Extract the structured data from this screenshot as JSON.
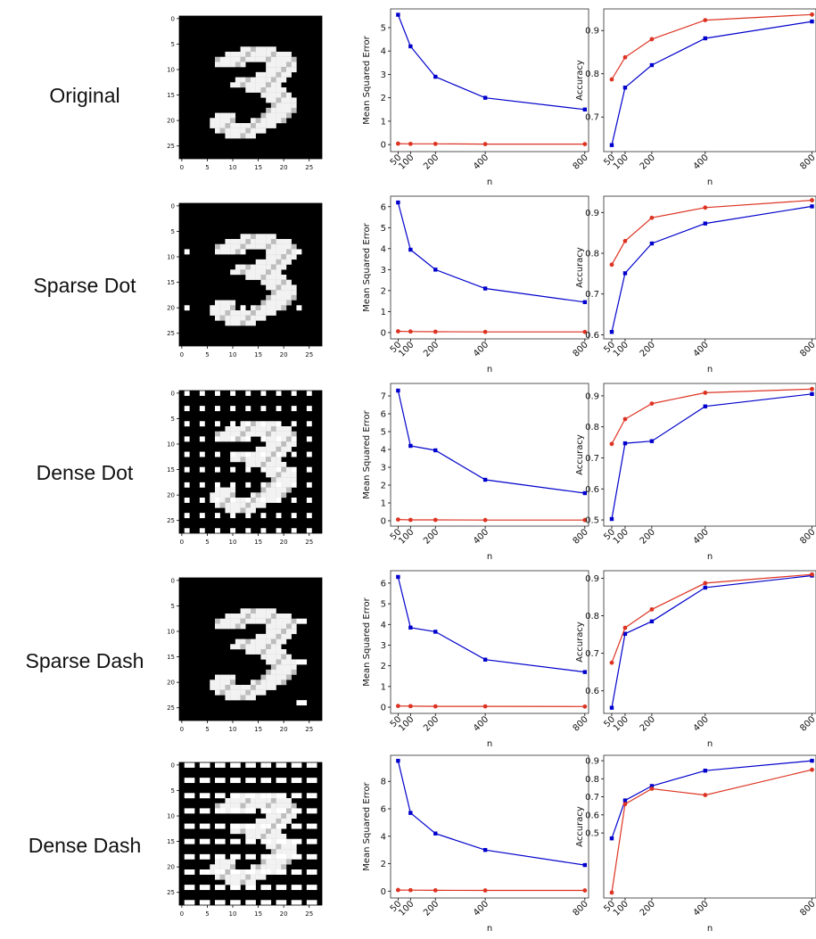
{
  "rows": [
    {
      "label": "Original"
    },
    {
      "label": "Sparse Dot"
    },
    {
      "label": "Dense Dot"
    },
    {
      "label": "Sparse Dash"
    },
    {
      "label": "Dense Dash"
    }
  ],
  "colors": {
    "series_a": "#0000cc",
    "series_b": "#dd3322"
  },
  "chart_data": [
    {
      "type": "heatmap",
      "row": "Original",
      "xlim": [
        0,
        27
      ],
      "ylim": [
        0,
        27
      ],
      "xticks": [
        "0",
        "5",
        "10",
        "15",
        "20",
        "25"
      ],
      "yticks": [
        "0",
        "5",
        "10",
        "15",
        "20",
        "25"
      ],
      "pattern": "none"
    },
    {
      "type": "line",
      "row": "Original",
      "xlabel": "n",
      "ylabel": "Mean Squared Error",
      "x": [
        50,
        100,
        200,
        400,
        800
      ],
      "xticks": [
        "50",
        "100",
        "200",
        "400",
        "800"
      ],
      "ylim": [
        -0.3,
        5.8
      ],
      "yticks": [
        0,
        1,
        2,
        3,
        4,
        5
      ],
      "series": [
        {
          "values": [
            5.55,
            4.2,
            2.9,
            2.0,
            1.5
          ]
        },
        {
          "values": [
            0.04,
            0.03,
            0.03,
            0.02,
            0.02
          ]
        }
      ]
    },
    {
      "type": "line",
      "row": "Original",
      "xlabel": "n",
      "ylabel": "Accuracy",
      "x": [
        50,
        100,
        200,
        400,
        800
      ],
      "xticks": [
        "50",
        "100",
        "200",
        "400",
        "800"
      ],
      "ylim": [
        0.62,
        0.95
      ],
      "yticks": [
        0.7,
        0.8,
        0.9
      ],
      "series": [
        {
          "values": [
            0.635,
            0.768,
            0.82,
            0.882,
            0.921
          ]
        },
        {
          "values": [
            0.787,
            0.838,
            0.88,
            0.924,
            0.937
          ]
        }
      ]
    },
    {
      "type": "heatmap",
      "row": "Sparse Dot",
      "xlim": [
        0,
        27
      ],
      "ylim": [
        0,
        27
      ],
      "xticks": [
        "0",
        "5",
        "10",
        "15",
        "20",
        "25"
      ],
      "yticks": [
        "0",
        "5",
        "10",
        "15",
        "20",
        "25"
      ],
      "pattern": "sparse-dot"
    },
    {
      "type": "line",
      "row": "Sparse Dot",
      "xlabel": "n",
      "ylabel": "Mean Squared Error",
      "x": [
        50,
        100,
        200,
        400,
        800
      ],
      "xticks": [
        "50",
        "100",
        "200",
        "400",
        "800"
      ],
      "ylim": [
        -0.3,
        6.5
      ],
      "yticks": [
        0,
        1,
        2,
        3,
        4,
        5,
        6
      ],
      "series": [
        {
          "values": [
            6.2,
            3.95,
            3.0,
            2.1,
            1.45
          ]
        },
        {
          "values": [
            0.06,
            0.05,
            0.04,
            0.03,
            0.03
          ]
        }
      ]
    },
    {
      "type": "line",
      "row": "Sparse Dot",
      "xlabel": "n",
      "ylabel": "Accuracy",
      "x": [
        50,
        100,
        200,
        400,
        800
      ],
      "xticks": [
        "50",
        "100",
        "200",
        "400",
        "800"
      ],
      "ylim": [
        0.59,
        0.94
      ],
      "yticks": [
        0.6,
        0.7,
        0.8,
        0.9
      ],
      "series": [
        {
          "values": [
            0.607,
            0.751,
            0.824,
            0.873,
            0.915
          ]
        },
        {
          "values": [
            0.772,
            0.83,
            0.887,
            0.912,
            0.93
          ]
        }
      ]
    },
    {
      "type": "heatmap",
      "row": "Dense Dot",
      "xlim": [
        0,
        27
      ],
      "ylim": [
        0,
        27
      ],
      "xticks": [
        "0",
        "5",
        "10",
        "15",
        "20",
        "25"
      ],
      "yticks": [
        "0",
        "5",
        "10",
        "15",
        "20",
        "25"
      ],
      "pattern": "dense-dot"
    },
    {
      "type": "line",
      "row": "Dense Dot",
      "xlabel": "n",
      "ylabel": "Mean Squared Error",
      "x": [
        50,
        100,
        200,
        400,
        800
      ],
      "xticks": [
        "50",
        "100",
        "200",
        "400",
        "800"
      ],
      "ylim": [
        -0.3,
        7.7
      ],
      "yticks": [
        0,
        1,
        2,
        3,
        4,
        5,
        6,
        7
      ],
      "series": [
        {
          "values": [
            7.3,
            4.2,
            3.95,
            2.3,
            1.55
          ]
        },
        {
          "values": [
            0.07,
            0.05,
            0.05,
            0.04,
            0.04
          ]
        }
      ]
    },
    {
      "type": "line",
      "row": "Dense Dot",
      "xlabel": "n",
      "ylabel": "Accuracy",
      "x": [
        50,
        100,
        200,
        400,
        800
      ],
      "xticks": [
        "50",
        "100",
        "200",
        "400",
        "800"
      ],
      "ylim": [
        0.48,
        0.94
      ],
      "yticks": [
        0.5,
        0.6,
        0.7,
        0.8,
        0.9
      ],
      "series": [
        {
          "values": [
            0.503,
            0.747,
            0.754,
            0.866,
            0.906
          ]
        },
        {
          "values": [
            0.745,
            0.825,
            0.875,
            0.91,
            0.922
          ]
        }
      ]
    },
    {
      "type": "heatmap",
      "row": "Sparse Dash",
      "xlim": [
        0,
        27
      ],
      "ylim": [
        0,
        27
      ],
      "xticks": [
        "0",
        "5",
        "10",
        "15",
        "20",
        "25"
      ],
      "yticks": [
        "0",
        "5",
        "10",
        "15",
        "20",
        "25"
      ],
      "pattern": "sparse-dash"
    },
    {
      "type": "line",
      "row": "Sparse Dash",
      "xlabel": "n",
      "ylabel": "Mean Squared Error",
      "x": [
        50,
        100,
        200,
        400,
        800
      ],
      "xticks": [
        "50",
        "100",
        "200",
        "400",
        "800"
      ],
      "ylim": [
        -0.3,
        6.6
      ],
      "yticks": [
        0,
        1,
        2,
        3,
        4,
        5,
        6
      ],
      "series": [
        {
          "values": [
            6.3,
            3.85,
            3.65,
            2.3,
            1.7
          ]
        },
        {
          "values": [
            0.06,
            0.05,
            0.04,
            0.04,
            0.03
          ]
        }
      ]
    },
    {
      "type": "line",
      "row": "Sparse Dash",
      "xlabel": "n",
      "ylabel": "Accuracy",
      "x": [
        50,
        100,
        200,
        400,
        800
      ],
      "xticks": [
        "50",
        "100",
        "200",
        "400",
        "800"
      ],
      "ylim": [
        0.54,
        0.92
      ],
      "yticks": [
        0.6,
        0.7,
        0.8,
        0.9
      ],
      "series": [
        {
          "values": [
            0.555,
            0.752,
            0.785,
            0.875,
            0.907
          ]
        },
        {
          "values": [
            0.675,
            0.768,
            0.817,
            0.887,
            0.91
          ]
        }
      ]
    },
    {
      "type": "heatmap",
      "row": "Dense Dash",
      "xlim": [
        0,
        27
      ],
      "ylim": [
        0,
        27
      ],
      "xticks": [
        "0",
        "5",
        "10",
        "15",
        "20",
        "25"
      ],
      "yticks": [
        "0",
        "5",
        "10",
        "15",
        "20",
        "25"
      ],
      "pattern": "dense-dash"
    },
    {
      "type": "line",
      "row": "Dense Dash",
      "xlabel": "n",
      "ylabel": "Mean Squared Error",
      "x": [
        50,
        100,
        200,
        400,
        800
      ],
      "xticks": [
        "50",
        "100",
        "200",
        "400",
        "800"
      ],
      "ylim": [
        -0.5,
        9.9
      ],
      "yticks": [
        0,
        2,
        4,
        6,
        8
      ],
      "series": [
        {
          "values": [
            9.5,
            5.7,
            4.2,
            3.0,
            1.9
          ]
        },
        {
          "values": [
            0.08,
            0.07,
            0.06,
            0.05,
            0.05
          ]
        }
      ]
    },
    {
      "type": "line",
      "row": "Dense Dash",
      "xlabel": "n",
      "ylabel": "Accuracy",
      "x": [
        50,
        100,
        200,
        400,
        800
      ],
      "xticks": [
        "50",
        "100",
        "200",
        "400",
        "800"
      ],
      "ylim": [
        0.14,
        0.93
      ],
      "yticks": [
        0.5,
        0.6,
        0.7,
        0.8,
        0.9
      ],
      "series": [
        {
          "values": [
            0.47,
            0.68,
            0.76,
            0.845,
            0.9
          ]
        },
        {
          "values": [
            0.17,
            0.66,
            0.745,
            0.71,
            0.85
          ]
        }
      ]
    }
  ]
}
